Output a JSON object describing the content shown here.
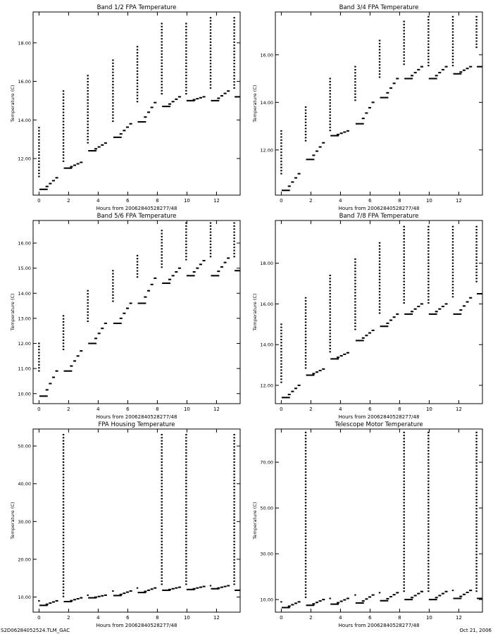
{
  "footer": {
    "left": "S2D06284052524.TLM_GAC",
    "right": "Oct 21, 2006"
  },
  "chart_data": [
    {
      "type": "scatter",
      "title": "Band 1/2 FPA Temperature",
      "xlabel": "Hours from 20062840528277/48",
      "ylabel": "Temperature (C)",
      "xlim": [
        -0.4,
        13.6
      ],
      "ylim": [
        10.1,
        19.6
      ],
      "xticks": [
        0,
        2,
        4,
        6,
        8,
        10,
        12
      ],
      "yticks": [
        12.0,
        14.0,
        16.0,
        18.0
      ],
      "ytick_labels": [
        "12.00",
        "14.00",
        "16.00",
        "18.00"
      ],
      "grid": false,
      "cycles": [
        {
          "t": 0.0,
          "dip": 10.4,
          "hold": 11.0,
          "peak": 13.6
        },
        {
          "t": 1.65,
          "dip": 11.5,
          "hold": 11.8,
          "peak": 15.5
        },
        {
          "t": 3.3,
          "dip": 12.4,
          "hold": 12.8,
          "peak": 16.3
        },
        {
          "t": 5.0,
          "dip": 13.1,
          "hold": 13.8,
          "peak": 17.1
        },
        {
          "t": 6.65,
          "dip": 13.9,
          "hold": 14.9,
          "peak": 17.8
        },
        {
          "t": 8.3,
          "dip": 14.7,
          "hold": 15.2,
          "peak": 19.0
        },
        {
          "t": 9.95,
          "dip": 15.0,
          "hold": 15.2,
          "peak": 19.0
        },
        {
          "t": 11.6,
          "dip": 15.0,
          "hold": 15.5,
          "peak": 19.3
        },
        {
          "t": 13.2,
          "dip": 15.2,
          "hold": 15.5,
          "peak": 19.3
        }
      ]
    },
    {
      "type": "scatter",
      "title": "Band 3/4 FPA Temperature",
      "xlabel": "Hours from 20062840528277/48",
      "ylabel": "Temperature (C)",
      "xlim": [
        -0.4,
        13.6
      ],
      "ylim": [
        10.1,
        17.8
      ],
      "xticks": [
        0,
        2,
        4,
        6,
        8,
        10,
        12
      ],
      "yticks": [
        12.0,
        14.0,
        16.0
      ],
      "ytick_labels": [
        "12.00",
        "14.00",
        "16.00"
      ],
      "grid": false,
      "cycles": [
        {
          "t": 0.0,
          "dip": 10.3,
          "hold": 11.0,
          "peak": 12.8
        },
        {
          "t": 1.65,
          "dip": 11.6,
          "hold": 12.3,
          "peak": 13.8
        },
        {
          "t": 3.3,
          "dip": 12.6,
          "hold": 12.8,
          "peak": 15.0
        },
        {
          "t": 5.0,
          "dip": 13.1,
          "hold": 14.0,
          "peak": 15.5
        },
        {
          "t": 6.65,
          "dip": 14.2,
          "hold": 15.0,
          "peak": 16.6
        },
        {
          "t": 8.3,
          "dip": 15.0,
          "hold": 15.5,
          "peak": 17.4
        },
        {
          "t": 9.95,
          "dip": 15.0,
          "hold": 15.5,
          "peak": 17.6
        },
        {
          "t": 11.6,
          "dip": 15.2,
          "hold": 15.5,
          "peak": 17.6
        },
        {
          "t": 13.2,
          "dip": 15.5,
          "hold": 16.2,
          "peak": 17.6
        }
      ]
    },
    {
      "type": "scatter",
      "title": "Band 5/6 FPA Temperature",
      "xlabel": "Hours from 20062840528277/48",
      "ylabel": "Temperature (C)",
      "xlim": [
        -0.4,
        13.6
      ],
      "ylim": [
        9.6,
        16.9
      ],
      "xticks": [
        0,
        2,
        4,
        6,
        8,
        10,
        12
      ],
      "yticks": [
        10.0,
        11.0,
        12.0,
        13.0,
        14.0,
        15.0,
        16.0
      ],
      "ytick_labels": [
        "10.00",
        "11.00",
        "12.00",
        "13.00",
        "14.00",
        "15.00",
        "16.00"
      ],
      "grid": false,
      "cycles": [
        {
          "t": 0.0,
          "dip": 9.9,
          "hold": 10.9,
          "peak": 12.0
        },
        {
          "t": 1.65,
          "dip": 10.9,
          "hold": 11.7,
          "peak": 13.1
        },
        {
          "t": 3.3,
          "dip": 12.0,
          "hold": 12.8,
          "peak": 14.1
        },
        {
          "t": 5.0,
          "dip": 12.8,
          "hold": 13.6,
          "peak": 14.9
        },
        {
          "t": 6.65,
          "dip": 13.6,
          "hold": 14.6,
          "peak": 15.5
        },
        {
          "t": 8.3,
          "dip": 14.4,
          "hold": 15.0,
          "peak": 16.5
        },
        {
          "t": 9.95,
          "dip": 14.7,
          "hold": 15.3,
          "peak": 16.8
        },
        {
          "t": 11.6,
          "dip": 14.7,
          "hold": 15.4,
          "peak": 16.8
        },
        {
          "t": 13.2,
          "dip": 14.9,
          "hold": 15.4,
          "peak": 16.8
        }
      ]
    },
    {
      "type": "scatter",
      "title": "Band 7/8 FPA Temperature",
      "xlabel": "Hours from 20062840528277/48",
      "ylabel": "Temperature (C)",
      "xlim": [
        -0.4,
        13.6
      ],
      "ylim": [
        11.1,
        20.1
      ],
      "xticks": [
        0,
        2,
        4,
        6,
        8,
        10,
        12
      ],
      "yticks": [
        12.0,
        14.0,
        16.0,
        18.0
      ],
      "ytick_labels": [
        "12.00",
        "14.00",
        "16.00",
        "18.00"
      ],
      "grid": false,
      "cycles": [
        {
          "t": 0.0,
          "dip": 11.4,
          "hold": 12.0,
          "peak": 15.0
        },
        {
          "t": 1.65,
          "dip": 12.5,
          "hold": 12.8,
          "peak": 16.3
        },
        {
          "t": 3.3,
          "dip": 13.3,
          "hold": 13.6,
          "peak": 17.4
        },
        {
          "t": 5.0,
          "dip": 14.2,
          "hold": 14.7,
          "peak": 18.2
        },
        {
          "t": 6.65,
          "dip": 14.9,
          "hold": 15.5,
          "peak": 19.0
        },
        {
          "t": 8.3,
          "dip": 15.5,
          "hold": 16.0,
          "peak": 19.8
        },
        {
          "t": 9.95,
          "dip": 15.5,
          "hold": 16.0,
          "peak": 19.8
        },
        {
          "t": 11.6,
          "dip": 15.5,
          "hold": 16.3,
          "peak": 19.8
        },
        {
          "t": 13.2,
          "dip": 16.5,
          "hold": 17.0,
          "peak": 19.8
        }
      ]
    },
    {
      "type": "scatter",
      "title": "FPA Housing Temperature",
      "xlabel": "Hours from 20062840528277/48",
      "ylabel": "Temperature (C)",
      "xlim": [
        -0.4,
        13.6
      ],
      "ylim": [
        6.0,
        54.5
      ],
      "xticks": [
        0,
        2,
        4,
        6,
        8,
        10,
        12
      ],
      "yticks": [
        10.0,
        20.0,
        30.0,
        40.0,
        50.0
      ],
      "ytick_labels": [
        "10.00",
        "20.00",
        "30.00",
        "40.00",
        "50.00"
      ],
      "grid": false,
      "cycles": [
        {
          "t": 0.0,
          "dip": 7.8,
          "hold": 9.0,
          "peak": null
        },
        {
          "t": 1.65,
          "dip": 8.8,
          "hold": 9.8,
          "peak": 53.0
        },
        {
          "t": 3.3,
          "dip": 9.8,
          "hold": 10.5,
          "peak": null
        },
        {
          "t": 5.0,
          "dip": 10.4,
          "hold": 11.6,
          "peak": null
        },
        {
          "t": 6.65,
          "dip": 11.2,
          "hold": 12.4,
          "peak": null
        },
        {
          "t": 8.3,
          "dip": 11.8,
          "hold": 12.6,
          "peak": 53.0
        },
        {
          "t": 9.95,
          "dip": 12.0,
          "hold": 12.8,
          "peak": 53.0
        },
        {
          "t": 11.6,
          "dip": 12.2,
          "hold": 13.0,
          "peak": null
        },
        {
          "t": 13.2,
          "dip": 11.8,
          "hold": 12.6,
          "peak": 53.0
        }
      ]
    },
    {
      "type": "scatter",
      "title": "Telescope Motor Temperature",
      "xlabel": "Hours from 20062840528277/48",
      "ylabel": "Temperature (C)",
      "xlim": [
        -0.4,
        13.6
      ],
      "ylim": [
        4.5,
        84.5
      ],
      "xticks": [
        0,
        2,
        4,
        6,
        8,
        10,
        12
      ],
      "yticks": [
        10.0,
        30.0,
        50.0,
        70.0
      ],
      "ytick_labels": [
        "10.00",
        "30.00",
        "50.00",
        "70.00"
      ],
      "grid": false,
      "cycles": [
        {
          "t": 0.0,
          "dip": 6.5,
          "hold": 9.0,
          "peak": null
        },
        {
          "t": 1.65,
          "dip": 7.5,
          "hold": 10.0,
          "peak": 83.0
        },
        {
          "t": 3.3,
          "dip": 8.0,
          "hold": 10.5,
          "peak": null
        },
        {
          "t": 5.0,
          "dip": 8.5,
          "hold": 12.0,
          "peak": null
        },
        {
          "t": 6.65,
          "dip": 9.5,
          "hold": 13.0,
          "peak": null
        },
        {
          "t": 8.3,
          "dip": 10.0,
          "hold": 13.5,
          "peak": 83.0
        },
        {
          "t": 9.95,
          "dip": 10.0,
          "hold": 13.5,
          "peak": 83.0
        },
        {
          "t": 11.6,
          "dip": 10.5,
          "hold": 14.0,
          "peak": null
        },
        {
          "t": 13.2,
          "dip": 10.5,
          "hold": 12.5,
          "peak": 83.0
        }
      ]
    }
  ]
}
